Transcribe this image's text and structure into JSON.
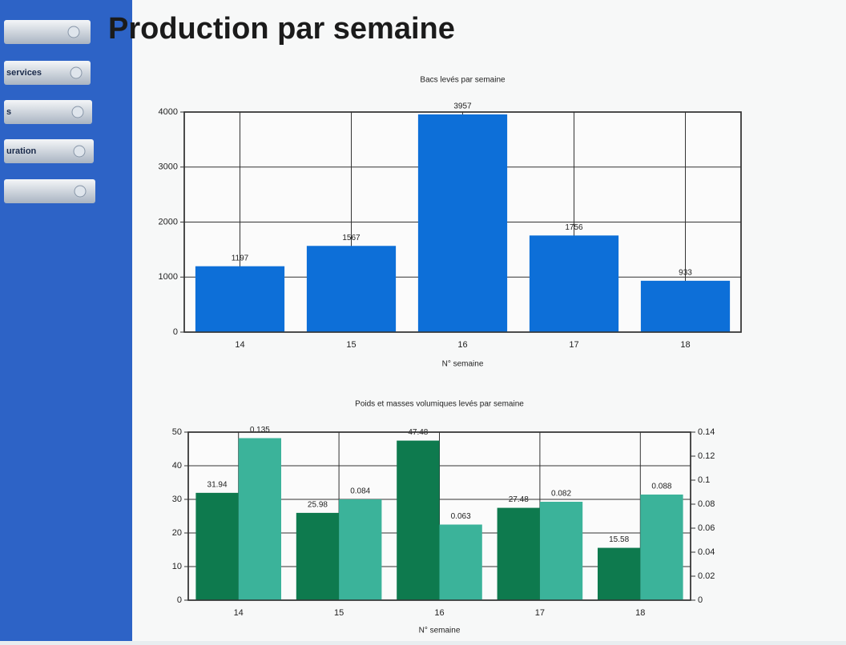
{
  "page": {
    "title": "Production par semaine",
    "menu": [
      "services",
      "s",
      "uration"
    ]
  },
  "chart_data": [
    {
      "type": "bar",
      "title": "Bacs levés par semaine",
      "x_label": "N° semaine",
      "categories": [
        "14",
        "15",
        "16",
        "17",
        "18"
      ],
      "values": [
        1197,
        1567,
        3957,
        1756,
        933
      ],
      "color": "#0d6fd8",
      "ylim": [
        0,
        4000
      ],
      "yticks": [
        0,
        1000,
        2000,
        3000,
        4000
      ],
      "grid": true
    },
    {
      "type": "bar",
      "title": "Poids et masses volumiques levés par semaine",
      "x_label": "N° semaine",
      "categories": [
        "14",
        "15",
        "16",
        "17",
        "18"
      ],
      "series": [
        {
          "color": "#0e7a4e",
          "values": [
            31.94,
            25.98,
            47.48,
            27.48,
            15.58
          ]
        },
        {
          "color": "#3bb39a",
          "axis": "y2",
          "values": [
            0.135,
            0.084,
            0.063,
            0.082,
            0.088
          ]
        }
      ],
      "ylim": [
        0,
        50
      ],
      "yticks": [
        0,
        10,
        20,
        30,
        40,
        50
      ],
      "y2lim": [
        0,
        0.14
      ],
      "y2ticks": [
        0,
        0.02,
        0.04,
        0.06,
        0.08,
        0.1,
        0.12,
        0.14
      ],
      "grid": true
    }
  ]
}
